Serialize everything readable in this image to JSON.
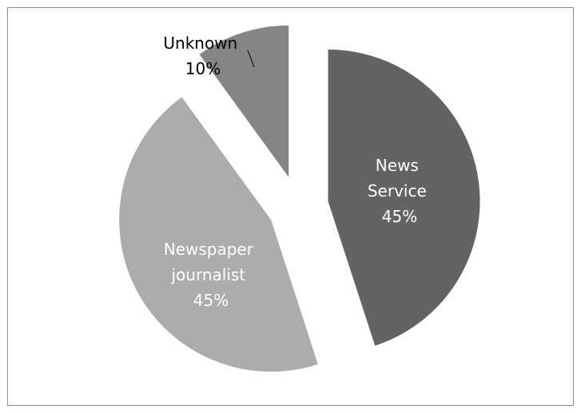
{
  "chart_data": {
    "type": "pie",
    "title": "",
    "slices": [
      {
        "label": "News Service",
        "value": 45,
        "color": "#636363",
        "label_lines": [
          "News",
          "Service",
          "45%"
        ]
      },
      {
        "label": "Newspaper journalist",
        "value": 45,
        "color": "#acacac",
        "label_lines": [
          "Newspaper",
          "journalist",
          "45%"
        ]
      },
      {
        "label": "Unknown",
        "value": 10,
        "color": "#858585",
        "label_lines": [
          "Unknown",
          "10%"
        ]
      }
    ],
    "exploded": true,
    "legend": "none"
  }
}
